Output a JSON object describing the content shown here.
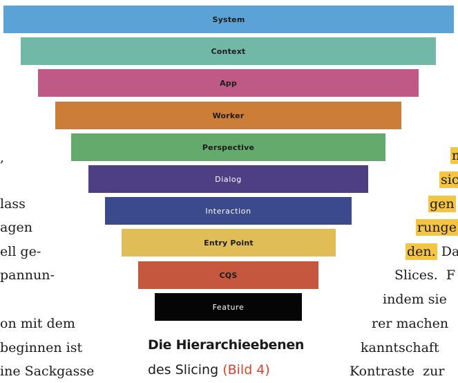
{
  "figure": {
    "levels": [
      {
        "label": "System",
        "color": "#5ba3d6"
      },
      {
        "label": "Context",
        "color": "#72b8a6"
      },
      {
        "label": "App",
        "color": "#bf5a86"
      },
      {
        "label": "Worker",
        "color": "#cc7d38"
      },
      {
        "label": "Perspective",
        "color": "#64aa6c"
      },
      {
        "label": "Dialog",
        "color": "#4e3f85"
      },
      {
        "label": "Interaction",
        "color": "#3b4a8c"
      },
      {
        "label": "Entry Point",
        "color": "#e1bd57"
      },
      {
        "label": "CQS",
        "color": "#c4573e"
      },
      {
        "label": "Feature",
        "color": "#050505"
      }
    ],
    "caption_title": "Die Hierarchieebenen",
    "caption_prefix": "des Slicing",
    "caption_ref": "(Bild 4)"
  },
  "left_column": [
    ",",
    "lass",
    "agen",
    "ell ge-",
    "pannun-",
    "",
    "on mit dem",
    "beginnen ist",
    "ine Sackgasse"
  ],
  "right_column": [
    {
      "text": "n",
      "highlight": true
    },
    {
      "text": "sic",
      "highlight": true
    },
    {
      "text": "gen",
      "highlight": true
    },
    {
      "text": "runge",
      "highlight": true
    },
    {
      "text": "den.",
      "highlight": true,
      "rest": " Da"
    },
    {
      "text": "Slices.  F",
      "highlight": false
    },
    {
      "text": "indem sie",
      "highlight": false
    },
    {
      "text": "rer machen",
      "highlight": false
    },
    {
      "text": "kanntschaft",
      "highlight": false
    },
    {
      "text": "Kontraste  zur",
      "highlight": false
    }
  ],
  "highlight_color": "#f4c542"
}
